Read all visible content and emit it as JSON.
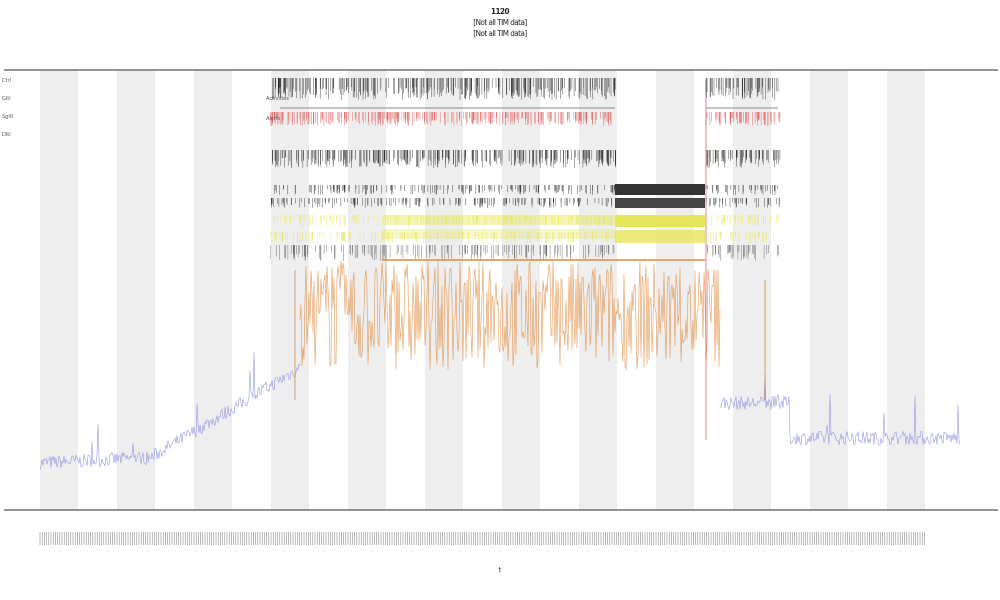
{
  "chart_data": {
    "type": "line",
    "title": "1120",
    "subtitle_1": "[Not all TIM data]",
    "subtitle_2": "[Not all TIM data]",
    "xlabel": "t",
    "ylabel": "",
    "grid": "alternating vertical bands",
    "legend_placement": "top-left",
    "legend": [
      "Ctrl",
      "Gltl",
      "Sgltl",
      "Dltl"
    ],
    "track_labels": [
      "Activities",
      "Alerts"
    ],
    "x": {
      "min": 0,
      "max": 1000
    },
    "series": [
      {
        "color": "#8a8ae6",
        "segments": [
          [
            0,
            300
          ],
          [
            720,
            1000
          ]
        ]
      },
      {
        "color": "#e08a3c",
        "segments": [
          [
            300,
            720
          ]
        ]
      }
    ],
    "colors": {
      "baseline": "#8a8ae6",
      "active": "#e08a3c",
      "alert": "#e05050",
      "event": "#222222",
      "highlight": "#e6e65a",
      "band": "#eeeeee"
    }
  }
}
